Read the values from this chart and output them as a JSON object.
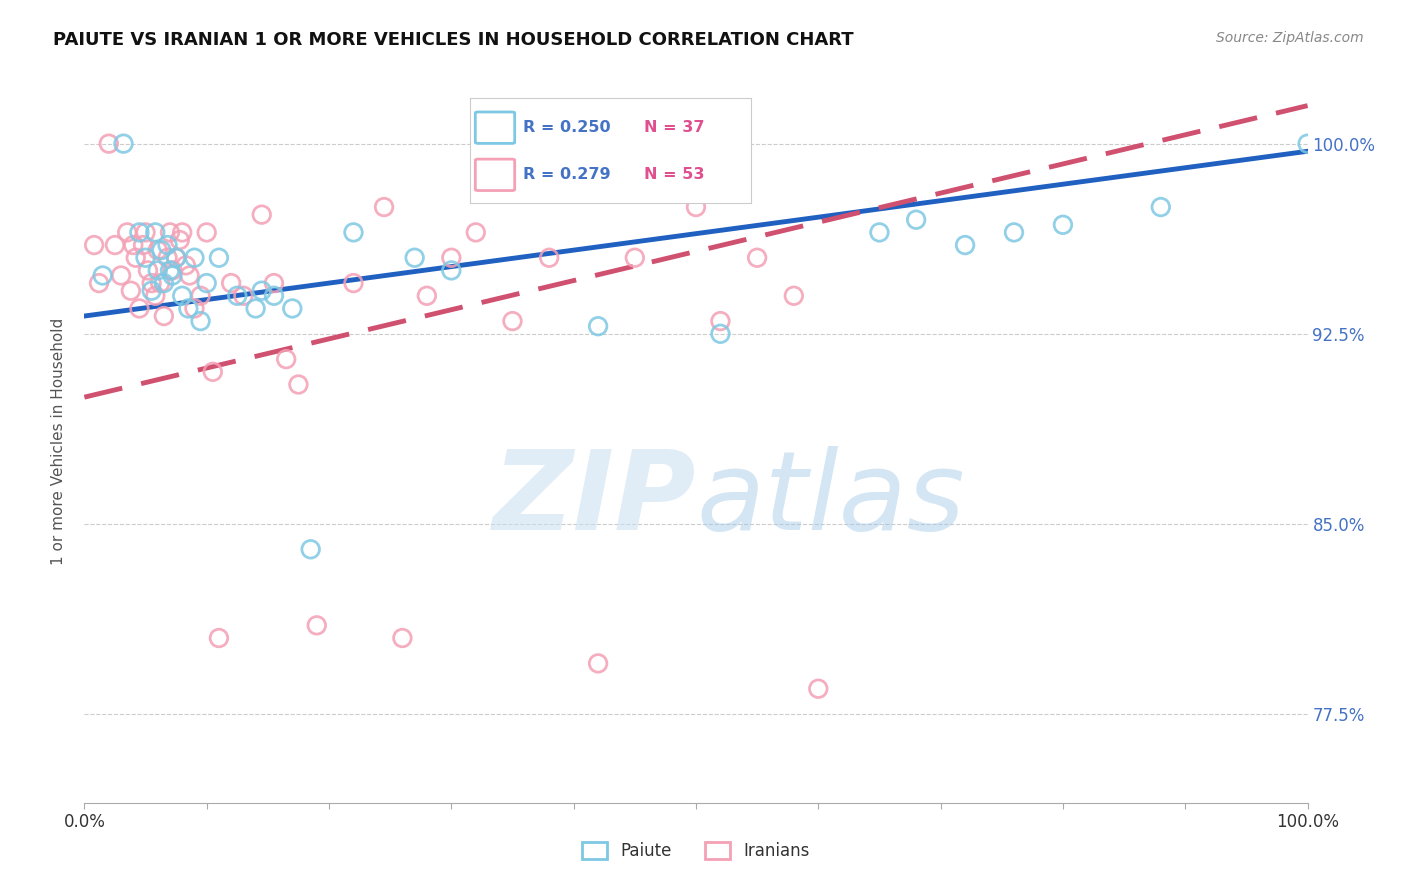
{
  "title": "PAIUTE VS IRANIAN 1 OR MORE VEHICLES IN HOUSEHOLD CORRELATION CHART",
  "source": "Source: ZipAtlas.com",
  "ylabel": "1 or more Vehicles in Household",
  "xlim": [
    0.0,
    100.0
  ],
  "ylim": [
    74.0,
    102.5
  ],
  "yticks": [
    77.5,
    85.0,
    92.5,
    100.0
  ],
  "xticks": [
    0.0,
    10.0,
    20.0,
    30.0,
    40.0,
    50.0,
    60.0,
    70.0,
    80.0,
    90.0,
    100.0
  ],
  "ytick_labels": [
    "77.5%",
    "85.0%",
    "92.5%",
    "100.0%"
  ],
  "legend_blue_r": "R = 0.250",
  "legend_blue_n": "N = 37",
  "legend_pink_r": "R = 0.279",
  "legend_pink_n": "N = 53",
  "legend_blue_label": "Paiute",
  "legend_pink_label": "Iranians",
  "blue_color": "#7ec8e3",
  "pink_color": "#f4a0b5",
  "trend_blue_color": "#2060c0",
  "trend_pink_color": "#d05070",
  "watermark_zip": "ZIP",
  "watermark_atlas": "atlas",
  "background_color": "#ffffff",
  "paiute_x": [
    1.5,
    3.2,
    4.5,
    5.0,
    5.5,
    5.8,
    6.0,
    6.3,
    6.5,
    6.8,
    7.0,
    7.2,
    7.5,
    8.0,
    8.5,
    9.0,
    9.5,
    10.0,
    11.0,
    12.5,
    14.0,
    14.5,
    15.5,
    17.0,
    18.5,
    22.0,
    27.0,
    30.0,
    42.0,
    52.0,
    65.0,
    68.0,
    72.0,
    76.0,
    80.0,
    88.0,
    100.0
  ],
  "paiute_y": [
    94.8,
    100.0,
    96.5,
    95.5,
    94.2,
    96.5,
    95.0,
    95.8,
    94.5,
    96.0,
    95.0,
    94.8,
    95.5,
    94.0,
    93.5,
    95.5,
    93.0,
    94.5,
    95.5,
    94.0,
    93.5,
    94.2,
    94.0,
    93.5,
    84.0,
    96.5,
    95.5,
    95.0,
    92.8,
    92.5,
    96.5,
    97.0,
    96.0,
    96.5,
    96.8,
    97.5,
    100.0
  ],
  "iranian_x": [
    0.8,
    1.2,
    2.0,
    2.5,
    3.0,
    3.5,
    3.8,
    4.0,
    4.2,
    4.5,
    4.8,
    5.0,
    5.2,
    5.5,
    5.8,
    6.0,
    6.2,
    6.5,
    6.8,
    7.0,
    7.2,
    7.5,
    7.8,
    8.0,
    8.3,
    8.6,
    9.0,
    9.5,
    10.0,
    10.5,
    11.0,
    12.0,
    13.0,
    14.5,
    15.5,
    16.5,
    17.5,
    19.0,
    22.0,
    24.5,
    26.0,
    28.0,
    30.0,
    32.0,
    35.0,
    38.0,
    42.0,
    45.0,
    50.0,
    52.0,
    55.0,
    58.0,
    60.0
  ],
  "iranian_y": [
    96.0,
    94.5,
    100.0,
    96.0,
    94.8,
    96.5,
    94.2,
    96.0,
    95.5,
    93.5,
    96.0,
    96.5,
    95.0,
    94.5,
    94.0,
    95.8,
    94.5,
    93.2,
    95.5,
    96.5,
    95.0,
    95.5,
    96.2,
    96.5,
    95.2,
    94.8,
    93.5,
    94.0,
    96.5,
    91.0,
    80.5,
    94.5,
    94.0,
    97.2,
    94.5,
    91.5,
    90.5,
    81.0,
    94.5,
    97.5,
    80.5,
    94.0,
    95.5,
    96.5,
    93.0,
    95.5,
    79.5,
    95.5,
    97.5,
    93.0,
    95.5,
    94.0,
    78.5
  ],
  "trend_blue_intercept": 93.2,
  "trend_blue_slope": 0.065,
  "trend_pink_intercept": 90.0,
  "trend_pink_slope": 0.115
}
